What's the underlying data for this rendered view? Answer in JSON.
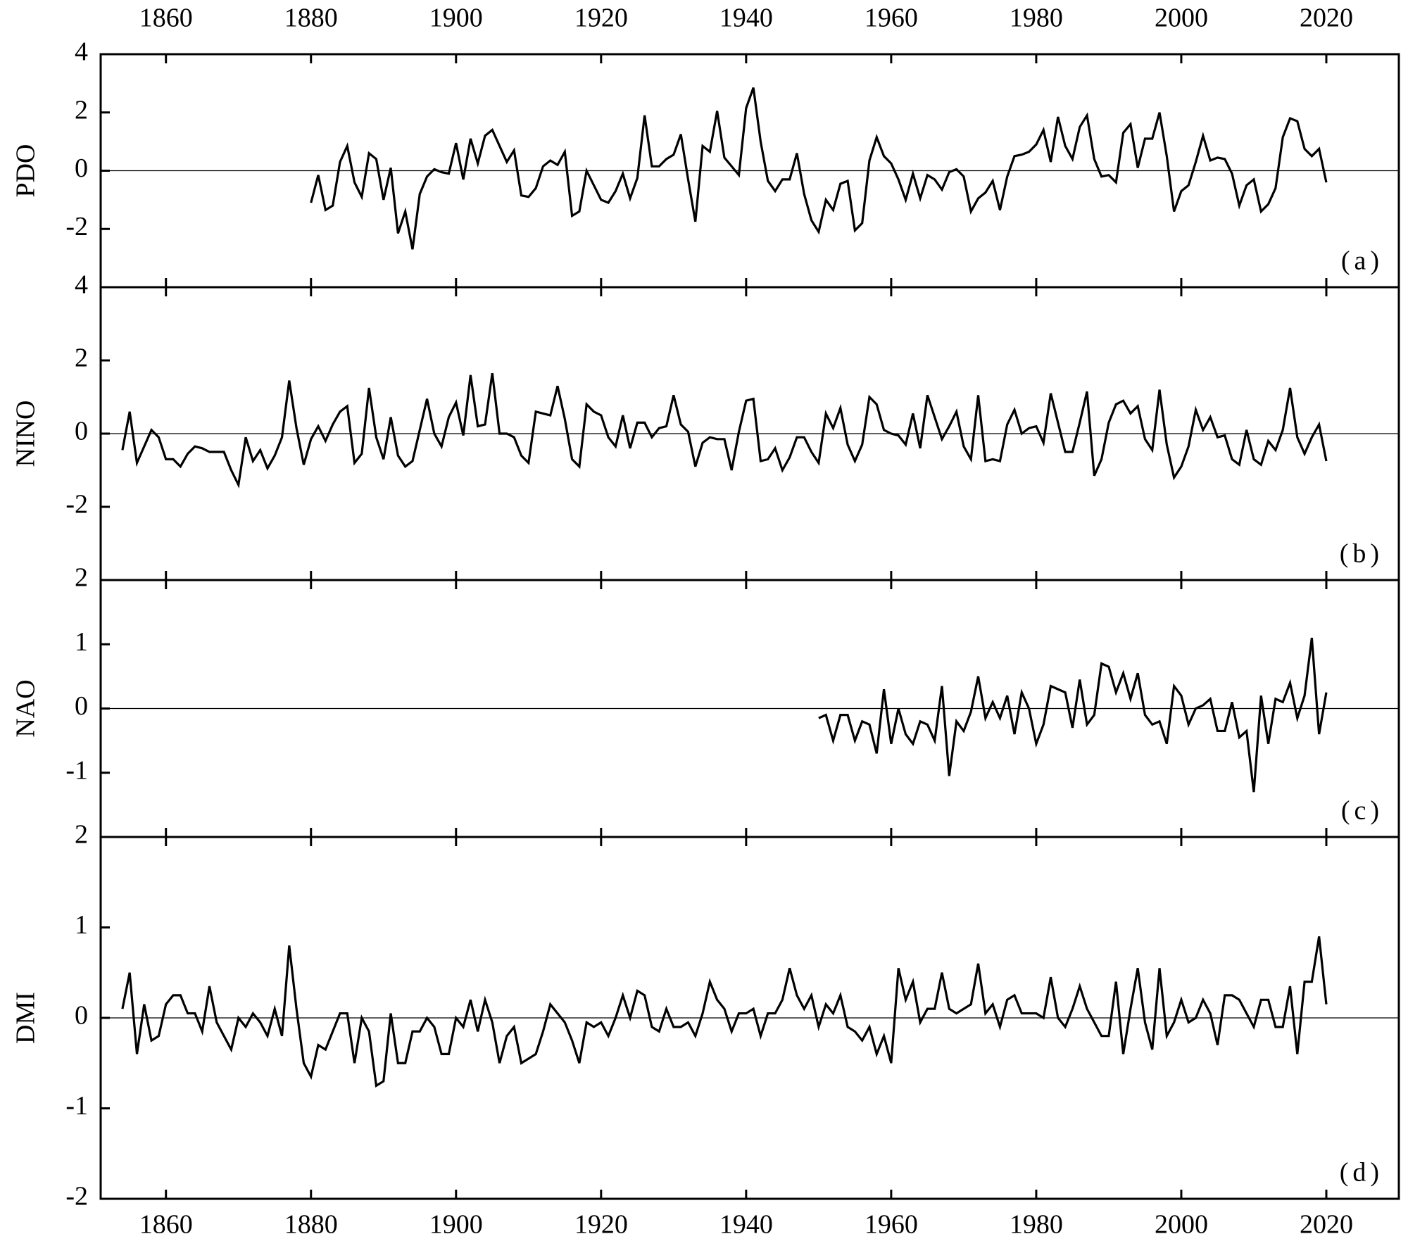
{
  "chart_data": [
    {
      "type": "line",
      "y_label": "PDO",
      "annotation": "(a)",
      "color": "#000000",
      "zero_line": true,
      "xaxis_position": "top",
      "xlim": [
        1851,
        2030
      ],
      "xticks": [
        1860,
        1880,
        1900,
        1920,
        1940,
        1960,
        1980,
        2000,
        2020
      ],
      "ylim": [
        -4,
        4
      ],
      "yticks": [
        -2,
        0,
        2,
        4
      ],
      "x": [
        1880,
        1881,
        1882,
        1883,
        1884,
        1885,
        1886,
        1887,
        1888,
        1889,
        1890,
        1891,
        1892,
        1893,
        1894,
        1895,
        1896,
        1897,
        1898,
        1899,
        1900,
        1901,
        1902,
        1903,
        1904,
        1905,
        1906,
        1907,
        1908,
        1909,
        1910,
        1911,
        1912,
        1913,
        1914,
        1915,
        1916,
        1917,
        1918,
        1919,
        1920,
        1921,
        1922,
        1923,
        1924,
        1925,
        1926,
        1927,
        1928,
        1929,
        1930,
        1931,
        1932,
        1933,
        1934,
        1935,
        1936,
        1937,
        1938,
        1939,
        1940,
        1941,
        1942,
        1943,
        1944,
        1945,
        1946,
        1947,
        1948,
        1949,
        1950,
        1951,
        1952,
        1953,
        1954,
        1955,
        1956,
        1957,
        1958,
        1959,
        1960,
        1961,
        1962,
        1963,
        1964,
        1965,
        1966,
        1967,
        1968,
        1969,
        1970,
        1971,
        1972,
        1973,
        1974,
        1975,
        1976,
        1977,
        1978,
        1979,
        1980,
        1981,
        1982,
        1983,
        1984,
        1985,
        1986,
        1987,
        1988,
        1989,
        1990,
        1991,
        1992,
        1993,
        1994,
        1995,
        1996,
        1997,
        1998,
        1999,
        2000,
        2001,
        2002,
        2003,
        2004,
        2005,
        2006,
        2007,
        2008,
        2009,
        2010,
        2011,
        2012,
        2013,
        2014,
        2015,
        2016,
        2017,
        2018,
        2019,
        2020
      ],
      "values": [
        -1.1,
        -0.15,
        -1.35,
        -1.2,
        0.3,
        0.85,
        -0.4,
        -0.9,
        0.6,
        0.4,
        -1.0,
        0.1,
        -2.15,
        -1.4,
        -2.7,
        -0.8,
        -0.2,
        0.05,
        -0.05,
        -0.1,
        0.95,
        -0.3,
        1.1,
        0.25,
        1.2,
        1.4,
        0.85,
        0.3,
        0.7,
        -0.85,
        -0.9,
        -0.6,
        0.15,
        0.35,
        0.2,
        0.65,
        -1.55,
        -1.4,
        0.0,
        -0.5,
        -1.0,
        -1.1,
        -0.7,
        -0.1,
        -0.95,
        -0.25,
        1.9,
        0.15,
        0.15,
        0.4,
        0.55,
        1.25,
        -0.3,
        -1.75,
        0.85,
        0.65,
        2.05,
        0.45,
        0.15,
        -0.15,
        2.15,
        2.85,
        1.0,
        -0.35,
        -0.7,
        -0.3,
        -0.3,
        0.6,
        -0.8,
        -1.7,
        -2.1,
        -1.0,
        -1.35,
        -0.45,
        -0.35,
        -2.05,
        -1.8,
        0.35,
        1.15,
        0.5,
        0.25,
        -0.3,
        -1.0,
        -0.1,
        -0.95,
        -0.15,
        -0.3,
        -0.65,
        -0.05,
        0.05,
        -0.2,
        -1.4,
        -0.95,
        -0.75,
        -0.35,
        -1.35,
        -0.2,
        0.5,
        0.55,
        0.65,
        0.9,
        1.4,
        0.3,
        1.85,
        0.85,
        0.4,
        1.5,
        1.9,
        0.4,
        -0.2,
        -0.15,
        -0.4,
        1.3,
        1.6,
        0.1,
        1.1,
        1.1,
        2.0,
        0.5,
        -1.4,
        -0.7,
        -0.5,
        0.3,
        1.2,
        0.35,
        0.45,
        0.4,
        -0.1,
        -1.2,
        -0.5,
        -0.3,
        -1.4,
        -1.15,
        -0.6,
        1.15,
        1.8,
        1.7,
        0.75,
        0.5,
        0.75,
        -0.4
      ]
    },
    {
      "type": "line",
      "y_label": "NINO",
      "annotation": "(b)",
      "color": "#000000",
      "zero_line": true,
      "xlim": [
        1851,
        2030
      ],
      "xticks": [
        1860,
        1880,
        1900,
        1920,
        1940,
        1960,
        1980,
        2000,
        2020
      ],
      "ylim": [
        -4,
        4
      ],
      "yticks": [
        -2,
        0,
        2,
        4
      ],
      "x": [
        1854,
        1855,
        1856,
        1857,
        1858,
        1859,
        1860,
        1861,
        1862,
        1863,
        1864,
        1865,
        1866,
        1867,
        1868,
        1869,
        1870,
        1871,
        1872,
        1873,
        1874,
        1875,
        1876,
        1877,
        1878,
        1879,
        1880,
        1881,
        1882,
        1883,
        1884,
        1885,
        1886,
        1887,
        1888,
        1889,
        1890,
        1891,
        1892,
        1893,
        1894,
        1895,
        1896,
        1897,
        1898,
        1899,
        1900,
        1901,
        1902,
        1903,
        1904,
        1905,
        1906,
        1907,
        1908,
        1909,
        1910,
        1911,
        1912,
        1913,
        1914,
        1915,
        1916,
        1917,
        1918,
        1919,
        1920,
        1921,
        1922,
        1923,
        1924,
        1925,
        1926,
        1927,
        1928,
        1929,
        1930,
        1931,
        1932,
        1933,
        1934,
        1935,
        1936,
        1937,
        1938,
        1939,
        1940,
        1941,
        1942,
        1943,
        1944,
        1945,
        1946,
        1947,
        1948,
        1949,
        1950,
        1951,
        1952,
        1953,
        1954,
        1955,
        1956,
        1957,
        1958,
        1959,
        1960,
        1961,
        1962,
        1963,
        1964,
        1965,
        1966,
        1967,
        1968,
        1969,
        1970,
        1971,
        1972,
        1973,
        1974,
        1975,
        1976,
        1977,
        1978,
        1979,
        1980,
        1981,
        1982,
        1983,
        1984,
        1985,
        1986,
        1987,
        1988,
        1989,
        1990,
        1991,
        1992,
        1993,
        1994,
        1995,
        1996,
        1997,
        1998,
        1999,
        2000,
        2001,
        2002,
        2003,
        2004,
        2005,
        2006,
        2007,
        2008,
        2009,
        2010,
        2011,
        2012,
        2013,
        2014,
        2015,
        2016,
        2017,
        2018,
        2019,
        2020
      ],
      "values": [
        -0.45,
        0.6,
        -0.8,
        -0.35,
        0.1,
        -0.1,
        -0.7,
        -0.7,
        -0.9,
        -0.55,
        -0.35,
        -0.4,
        -0.5,
        -0.5,
        -0.5,
        -1.0,
        -1.4,
        -0.1,
        -0.75,
        -0.45,
        -0.95,
        -0.6,
        -0.1,
        1.45,
        0.15,
        -0.85,
        -0.15,
        0.2,
        -0.2,
        0.25,
        0.6,
        0.75,
        -0.8,
        -0.55,
        1.25,
        -0.1,
        -0.7,
        0.45,
        -0.6,
        -0.9,
        -0.75,
        0.1,
        0.95,
        0.0,
        -0.35,
        0.45,
        0.85,
        -0.05,
        1.6,
        0.2,
        0.25,
        1.65,
        0.0,
        0.0,
        -0.1,
        -0.6,
        -0.8,
        0.6,
        0.55,
        0.5,
        1.3,
        0.4,
        -0.7,
        -0.9,
        0.8,
        0.6,
        0.5,
        -0.1,
        -0.35,
        0.5,
        -0.4,
        0.3,
        0.3,
        -0.1,
        0.15,
        0.2,
        1.05,
        0.25,
        0.05,
        -0.9,
        -0.25,
        -0.1,
        -0.15,
        -0.15,
        -1.0,
        0.05,
        0.9,
        0.95,
        -0.75,
        -0.7,
        -0.4,
        -1.0,
        -0.65,
        -0.1,
        -0.1,
        -0.5,
        -0.8,
        0.55,
        0.15,
        0.7,
        -0.3,
        -0.75,
        -0.3,
        1.0,
        0.8,
        0.1,
        0.0,
        -0.05,
        -0.3,
        0.55,
        -0.4,
        1.05,
        0.45,
        -0.15,
        0.2,
        0.6,
        -0.35,
        -0.7,
        1.05,
        -0.75,
        -0.7,
        -0.75,
        0.25,
        0.65,
        0.0,
        0.15,
        0.2,
        -0.25,
        1.1,
        0.3,
        -0.5,
        -0.5,
        0.3,
        1.15,
        -1.15,
        -0.7,
        0.3,
        0.8,
        0.9,
        0.55,
        0.75,
        -0.15,
        -0.45,
        1.2,
        -0.3,
        -1.2,
        -0.9,
        -0.35,
        0.65,
        0.1,
        0.45,
        -0.1,
        -0.05,
        -0.7,
        -0.85,
        0.1,
        -0.7,
        -0.85,
        -0.2,
        -0.45,
        0.1,
        1.25,
        -0.1,
        -0.55,
        -0.1,
        0.25,
        -0.75
      ]
    },
    {
      "type": "line",
      "y_label": "NAO",
      "annotation": "(c)",
      "color": "#000000",
      "zero_line": true,
      "xlim": [
        1851,
        2030
      ],
      "xticks": [
        1860,
        1880,
        1900,
        1920,
        1940,
        1960,
        1980,
        2000,
        2020
      ],
      "ylim": [
        -2,
        2
      ],
      "yticks": [
        -1,
        0,
        1,
        2
      ],
      "x": [
        1950,
        1951,
        1952,
        1953,
        1954,
        1955,
        1956,
        1957,
        1958,
        1959,
        1960,
        1961,
        1962,
        1963,
        1964,
        1965,
        1966,
        1967,
        1968,
        1969,
        1970,
        1971,
        1972,
        1973,
        1974,
        1975,
        1976,
        1977,
        1978,
        1979,
        1980,
        1981,
        1982,
        1983,
        1984,
        1985,
        1986,
        1987,
        1988,
        1989,
        1990,
        1991,
        1992,
        1993,
        1994,
        1995,
        1996,
        1997,
        1998,
        1999,
        2000,
        2001,
        2002,
        2003,
        2004,
        2005,
        2006,
        2007,
        2008,
        2009,
        2010,
        2011,
        2012,
        2013,
        2014,
        2015,
        2016,
        2017,
        2018,
        2019,
        2020
      ],
      "values": [
        -0.15,
        -0.1,
        -0.5,
        -0.1,
        -0.1,
        -0.5,
        -0.2,
        -0.25,
        -0.7,
        0.3,
        -0.55,
        0.0,
        -0.4,
        -0.55,
        -0.2,
        -0.25,
        -0.5,
        0.35,
        -1.05,
        -0.2,
        -0.35,
        -0.05,
        0.5,
        -0.15,
        0.1,
        -0.15,
        0.2,
        -0.4,
        0.25,
        0.0,
        -0.55,
        -0.25,
        0.35,
        0.3,
        0.25,
        -0.3,
        0.45,
        -0.25,
        -0.1,
        0.7,
        0.65,
        0.25,
        0.55,
        0.15,
        0.55,
        -0.1,
        -0.25,
        -0.2,
        -0.55,
        0.35,
        0.2,
        -0.25,
        0.0,
        0.05,
        0.15,
        -0.35,
        -0.35,
        0.1,
        -0.45,
        -0.35,
        -1.3,
        0.2,
        -0.55,
        0.15,
        0.1,
        0.4,
        -0.15,
        0.2,
        1.1,
        -0.4,
        0.25
      ]
    },
    {
      "type": "line",
      "y_label": "DMI",
      "annotation": "(d)",
      "color": "#000000",
      "zero_line": true,
      "xaxis_position": "bottom",
      "xlim": [
        1851,
        2030
      ],
      "xticks": [
        1860,
        1880,
        1900,
        1920,
        1940,
        1960,
        1980,
        2000,
        2020
      ],
      "ylim": [
        -2,
        2
      ],
      "yticks": [
        -2,
        -1,
        0,
        1,
        2
      ],
      "x": [
        1854,
        1855,
        1856,
        1857,
        1858,
        1859,
        1860,
        1861,
        1862,
        1863,
        1864,
        1865,
        1866,
        1867,
        1868,
        1869,
        1870,
        1871,
        1872,
        1873,
        1874,
        1875,
        1876,
        1877,
        1878,
        1879,
        1880,
        1881,
        1882,
        1883,
        1884,
        1885,
        1886,
        1887,
        1888,
        1889,
        1890,
        1891,
        1892,
        1893,
        1894,
        1895,
        1896,
        1897,
        1898,
        1899,
        1900,
        1901,
        1902,
        1903,
        1904,
        1905,
        1906,
        1907,
        1908,
        1909,
        1910,
        1911,
        1912,
        1913,
        1914,
        1915,
        1916,
        1917,
        1918,
        1919,
        1920,
        1921,
        1922,
        1923,
        1924,
        1925,
        1926,
        1927,
        1928,
        1929,
        1930,
        1931,
        1932,
        1933,
        1934,
        1935,
        1936,
        1937,
        1938,
        1939,
        1940,
        1941,
        1942,
        1943,
        1944,
        1945,
        1946,
        1947,
        1948,
        1949,
        1950,
        1951,
        1952,
        1953,
        1954,
        1955,
        1956,
        1957,
        1958,
        1959,
        1960,
        1961,
        1962,
        1963,
        1964,
        1965,
        1966,
        1967,
        1968,
        1969,
        1970,
        1971,
        1972,
        1973,
        1974,
        1975,
        1976,
        1977,
        1978,
        1979,
        1980,
        1981,
        1982,
        1983,
        1984,
        1985,
        1986,
        1987,
        1988,
        1989,
        1990,
        1991,
        1992,
        1993,
        1994,
        1995,
        1996,
        1997,
        1998,
        1999,
        2000,
        2001,
        2002,
        2003,
        2004,
        2005,
        2006,
        2007,
        2008,
        2009,
        2010,
        2011,
        2012,
        2013,
        2014,
        2015,
        2016,
        2017,
        2018,
        2019,
        2020
      ],
      "values": [
        0.1,
        0.5,
        -0.4,
        0.15,
        -0.25,
        -0.2,
        0.15,
        0.25,
        0.25,
        0.05,
        0.05,
        -0.15,
        0.35,
        -0.05,
        -0.2,
        -0.35,
        0.0,
        -0.1,
        0.05,
        -0.05,
        -0.2,
        0.1,
        -0.2,
        0.8,
        0.1,
        -0.5,
        -0.65,
        -0.3,
        -0.35,
        -0.15,
        0.05,
        0.05,
        -0.5,
        0.0,
        -0.15,
        -0.75,
        -0.7,
        0.05,
        -0.5,
        -0.5,
        -0.15,
        -0.15,
        0.0,
        -0.1,
        -0.4,
        -0.4,
        0.0,
        -0.1,
        0.2,
        -0.15,
        0.2,
        -0.05,
        -0.5,
        -0.2,
        -0.1,
        -0.5,
        -0.45,
        -0.4,
        -0.15,
        0.15,
        0.05,
        -0.05,
        -0.25,
        -0.5,
        -0.05,
        -0.1,
        -0.05,
        -0.2,
        0.0,
        0.25,
        0.0,
        0.3,
        0.25,
        -0.1,
        -0.15,
        0.1,
        -0.1,
        -0.1,
        -0.05,
        -0.2,
        0.05,
        0.4,
        0.2,
        0.1,
        -0.15,
        0.05,
        0.05,
        0.1,
        -0.2,
        0.05,
        0.05,
        0.2,
        0.55,
        0.25,
        0.1,
        0.25,
        -0.1,
        0.15,
        0.05,
        0.25,
        -0.1,
        -0.15,
        -0.25,
        -0.1,
        -0.4,
        -0.2,
        -0.5,
        0.55,
        0.2,
        0.4,
        -0.05,
        0.1,
        0.1,
        0.5,
        0.1,
        0.05,
        0.1,
        0.15,
        0.6,
        0.05,
        0.15,
        -0.1,
        0.2,
        0.25,
        0.05,
        0.05,
        0.05,
        0.0,
        0.45,
        0.0,
        -0.1,
        0.1,
        0.35,
        0.1,
        -0.05,
        -0.2,
        -0.2,
        0.4,
        -0.4,
        0.1,
        0.55,
        -0.05,
        -0.35,
        0.55,
        -0.2,
        -0.05,
        0.2,
        -0.05,
        0.0,
        0.2,
        0.05,
        -0.3,
        0.25,
        0.25,
        0.2,
        0.05,
        -0.1,
        0.2,
        0.2,
        -0.1,
        -0.1,
        0.35,
        -0.4,
        0.4,
        0.4,
        0.9,
        0.15
      ]
    }
  ]
}
